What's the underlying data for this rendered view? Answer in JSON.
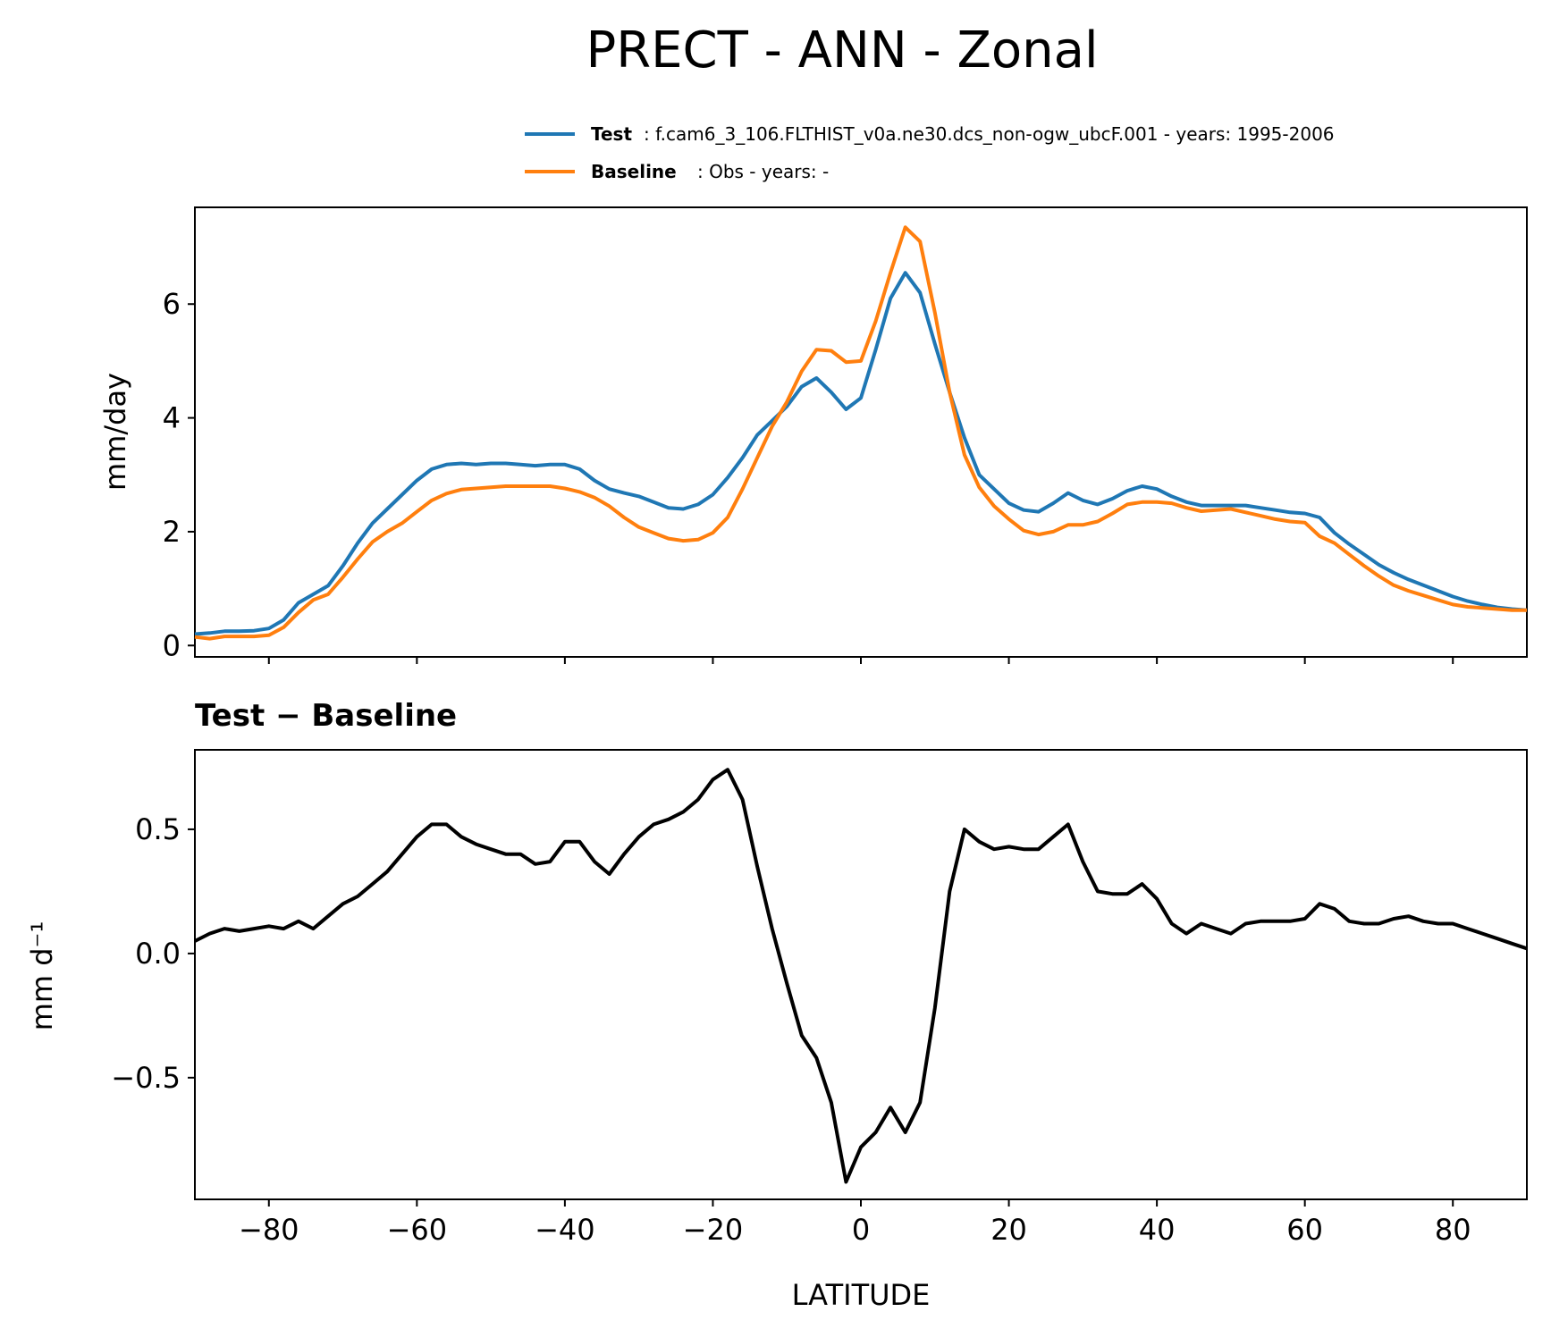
{
  "chart_data": [
    {
      "type": "line",
      "title": "PRECT - ANN - Zonal",
      "ylabel": "mm/day",
      "xlabel": "",
      "xlim": [
        -90,
        90
      ],
      "ylim": [
        -0.2,
        7.7
      ],
      "yticks": [
        0,
        2,
        4,
        6
      ],
      "ytick_labels": [
        "0",
        "2",
        "4",
        "6"
      ],
      "xticks": [
        -80,
        -60,
        -40,
        -20,
        0,
        20,
        40,
        60,
        80
      ],
      "legend": [
        {
          "name_bold": "Test",
          "text": ": f.cam6_3_106.FLTHIST_v0a.ne30.dcs_non-ogw_ubcF.001 - years: 1995-2006",
          "color": "#1f77b4"
        },
        {
          "name_bold": "Baseline",
          "text": ": Obs - years: -",
          "color": "#ff7f0e"
        }
      ],
      "x": [
        -90,
        -88,
        -86,
        -84,
        -82,
        -80,
        -78,
        -76,
        -74,
        -72,
        -70,
        -68,
        -66,
        -64,
        -62,
        -60,
        -58,
        -56,
        -54,
        -52,
        -50,
        -48,
        -46,
        -44,
        -42,
        -40,
        -38,
        -36,
        -34,
        -32,
        -30,
        -28,
        -26,
        -24,
        -22,
        -20,
        -18,
        -16,
        -14,
        -12,
        -10,
        -8,
        -6,
        -4,
        -2,
        0,
        2,
        4,
        6,
        8,
        10,
        12,
        14,
        16,
        18,
        20,
        22,
        24,
        26,
        28,
        30,
        32,
        34,
        36,
        38,
        40,
        42,
        44,
        46,
        48,
        50,
        52,
        54,
        56,
        58,
        60,
        62,
        64,
        66,
        68,
        70,
        72,
        74,
        76,
        78,
        80,
        82,
        84,
        86,
        88,
        90
      ],
      "series": [
        {
          "name": "Test",
          "color": "#1f77b4",
          "values": [
            0.2,
            0.22,
            0.25,
            0.25,
            0.26,
            0.3,
            0.45,
            0.75,
            0.9,
            1.05,
            1.4,
            1.8,
            2.15,
            2.4,
            2.65,
            2.9,
            3.1,
            3.18,
            3.2,
            3.18,
            3.2,
            3.2,
            3.18,
            3.16,
            3.18,
            3.18,
            3.1,
            2.9,
            2.75,
            2.68,
            2.62,
            2.52,
            2.42,
            2.4,
            2.48,
            2.65,
            2.95,
            3.3,
            3.7,
            3.95,
            4.2,
            4.55,
            4.7,
            4.45,
            4.15,
            4.35,
            5.2,
            6.1,
            6.55,
            6.2,
            5.3,
            4.45,
            3.65,
            3.0,
            2.75,
            2.5,
            2.38,
            2.35,
            2.5,
            2.68,
            2.55,
            2.48,
            2.58,
            2.72,
            2.8,
            2.75,
            2.62,
            2.52,
            2.46,
            2.46,
            2.46,
            2.46,
            2.42,
            2.38,
            2.34,
            2.32,
            2.25,
            1.98,
            1.78,
            1.6,
            1.42,
            1.28,
            1.16,
            1.06,
            0.96,
            0.86,
            0.78,
            0.72,
            0.67,
            0.64,
            0.62
          ]
        },
        {
          "name": "Baseline",
          "color": "#ff7f0e",
          "values": [
            0.15,
            0.12,
            0.16,
            0.16,
            0.16,
            0.18,
            0.32,
            0.58,
            0.8,
            0.9,
            1.2,
            1.52,
            1.82,
            2.0,
            2.15,
            2.35,
            2.55,
            2.67,
            2.74,
            2.76,
            2.78,
            2.8,
            2.8,
            2.8,
            2.8,
            2.76,
            2.7,
            2.6,
            2.45,
            2.25,
            2.08,
            1.98,
            1.88,
            1.84,
            1.86,
            1.98,
            2.25,
            2.75,
            3.3,
            3.85,
            4.28,
            4.82,
            5.2,
            5.18,
            4.98,
            5.0,
            5.7,
            6.55,
            7.35,
            7.1,
            5.85,
            4.45,
            3.35,
            2.78,
            2.45,
            2.22,
            2.02,
            1.95,
            2.0,
            2.12,
            2.12,
            2.18,
            2.32,
            2.48,
            2.52,
            2.52,
            2.5,
            2.42,
            2.36,
            2.38,
            2.4,
            2.34,
            2.28,
            2.22,
            2.18,
            2.16,
            1.92,
            1.8,
            1.6,
            1.4,
            1.22,
            1.06,
            0.96,
            0.88,
            0.8,
            0.72,
            0.68,
            0.66,
            0.64,
            0.62,
            0.62
          ]
        }
      ]
    },
    {
      "type": "line",
      "title": "Test − Baseline",
      "ylabel": "mm d⁻¹",
      "xlabel": "LATITUDE",
      "xlim": [
        -90,
        90
      ],
      "ylim": [
        -0.99,
        0.82
      ],
      "yticks": [
        -0.5,
        0.0,
        0.5
      ],
      "ytick_labels": [
        "−0.5",
        "0.0",
        "0.5"
      ],
      "xticks": [
        -80,
        -60,
        -40,
        -20,
        0,
        20,
        40,
        60,
        80
      ],
      "xtick_labels": [
        "−80",
        "−60",
        "−40",
        "−20",
        "0",
        "20",
        "40",
        "60",
        "80"
      ],
      "x": [
        -90,
        -88,
        -86,
        -84,
        -82,
        -80,
        -78,
        -76,
        -74,
        -72,
        -70,
        -68,
        -66,
        -64,
        -62,
        -60,
        -58,
        -56,
        -54,
        -52,
        -50,
        -48,
        -46,
        -44,
        -42,
        -40,
        -38,
        -36,
        -34,
        -32,
        -30,
        -28,
        -26,
        -24,
        -22,
        -20,
        -18,
        -16,
        -14,
        -12,
        -10,
        -8,
        -6,
        -4,
        -2,
        0,
        2,
        4,
        6,
        8,
        10,
        12,
        14,
        16,
        18,
        20,
        22,
        24,
        26,
        28,
        30,
        32,
        34,
        36,
        38,
        40,
        42,
        44,
        46,
        48,
        50,
        52,
        54,
        56,
        58,
        60,
        62,
        64,
        66,
        68,
        70,
        72,
        74,
        76,
        78,
        80,
        82,
        84,
        86,
        88,
        90
      ],
      "series": [
        {
          "name": "Test − Baseline",
          "color": "#000000",
          "values": [
            0.05,
            0.08,
            0.1,
            0.09,
            0.1,
            0.11,
            0.1,
            0.13,
            0.1,
            0.15,
            0.2,
            0.23,
            0.28,
            0.33,
            0.4,
            0.47,
            0.52,
            0.52,
            0.47,
            0.44,
            0.42,
            0.4,
            0.4,
            0.36,
            0.37,
            0.45,
            0.45,
            0.37,
            0.32,
            0.4,
            0.47,
            0.52,
            0.54,
            0.57,
            0.62,
            0.7,
            0.74,
            0.62,
            0.35,
            0.1,
            -0.12,
            -0.33,
            -0.42,
            -0.6,
            -0.92,
            -0.78,
            -0.72,
            -0.62,
            -0.72,
            -0.6,
            -0.22,
            0.25,
            0.5,
            0.45,
            0.42,
            0.43,
            0.42,
            0.42,
            0.47,
            0.52,
            0.37,
            0.25,
            0.24,
            0.24,
            0.28,
            0.22,
            0.12,
            0.08,
            0.12,
            0.1,
            0.08,
            0.12,
            0.13,
            0.13,
            0.13,
            0.14,
            0.2,
            0.18,
            0.13,
            0.12,
            0.12,
            0.14,
            0.15,
            0.13,
            0.12,
            0.12,
            0.1,
            0.08,
            0.06,
            0.04,
            0.02
          ]
        }
      ]
    }
  ]
}
